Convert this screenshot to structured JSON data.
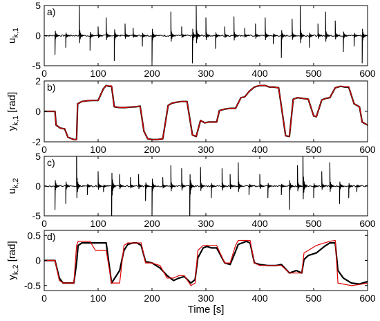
{
  "colors": {
    "black_trace": "#000000",
    "red_trace": "#e00000",
    "axes": "#000000",
    "background": "#ffffff"
  },
  "chart_data": [
    {
      "type": "line",
      "panel_label": "a)",
      "ylabel_main": "u",
      "ylabel_sub": "k,1",
      "ylabel_unit": "",
      "xlim": [
        0,
        600
      ],
      "ylim": [
        -5,
        5
      ],
      "xticks": [
        "0",
        "100",
        "200",
        "300",
        "400",
        "500",
        "600"
      ],
      "yticks": [
        "-5",
        "0",
        "5"
      ],
      "yticks_values": [
        -5,
        0,
        5
      ],
      "steps": [
        {
          "t": 20,
          "v": -3.2
        },
        {
          "t": 40,
          "v": -2.0
        },
        {
          "t": 65,
          "v": 5.0
        },
        {
          "t": 85,
          "v": -2.5
        },
        {
          "t": 100,
          "v": 1.5
        },
        {
          "t": 115,
          "v": 3.0
        },
        {
          "t": 130,
          "v": -4.2
        },
        {
          "t": 150,
          "v": 2.0
        },
        {
          "t": 165,
          "v": 1.3
        },
        {
          "t": 182,
          "v": -1.8
        },
        {
          "t": 200,
          "v": -4.5
        },
        {
          "t": 235,
          "v": 4.0
        },
        {
          "t": 255,
          "v": 1.5
        },
        {
          "t": 275,
          "v": -4.6
        },
        {
          "t": 282,
          "v": 5.0
        },
        {
          "t": 300,
          "v": 3.0
        },
        {
          "t": 318,
          "v": -2.2
        },
        {
          "t": 335,
          "v": 1.5
        },
        {
          "t": 352,
          "v": 3.2
        },
        {
          "t": 372,
          "v": 1.3
        },
        {
          "t": 392,
          "v": 2.0
        },
        {
          "t": 410,
          "v": 3.0
        },
        {
          "t": 425,
          "v": -1.4
        },
        {
          "t": 440,
          "v": -3.7
        },
        {
          "t": 460,
          "v": 2.8
        },
        {
          "t": 475,
          "v": 5.0
        },
        {
          "t": 492,
          "v": -2.0
        },
        {
          "t": 508,
          "v": 2.0
        },
        {
          "t": 522,
          "v": 4.0
        },
        {
          "t": 540,
          "v": 2.5
        },
        {
          "t": 555,
          "v": -2.7
        },
        {
          "t": 575,
          "v": -1.8
        },
        {
          "t": 590,
          "v": -4.6
        }
      ],
      "series": [
        {
          "color": "#000000",
          "values": []
        }
      ]
    },
    {
      "type": "line",
      "panel_label": "b)",
      "ylabel_main": "y",
      "ylabel_sub": "k,1",
      "ylabel_unit": " [rad]",
      "xlim": [
        0,
        600
      ],
      "ylim": [
        -2,
        2
      ],
      "xticks": [
        "0",
        "100",
        "200",
        "300",
        "400",
        "500",
        "600"
      ],
      "yticks": [
        "-2",
        "0",
        "2"
      ],
      "yticks_values": [
        -2,
        0,
        2
      ],
      "x": [
        0,
        20,
        22,
        30,
        38,
        44,
        55,
        60,
        62,
        70,
        80,
        90,
        100,
        110,
        115,
        120,
        125,
        130,
        140,
        150,
        160,
        170,
        178,
        185,
        192,
        200,
        210,
        220,
        230,
        238,
        245,
        255,
        265,
        275,
        282,
        290,
        298,
        305,
        320,
        325,
        335,
        345,
        355,
        365,
        372,
        380,
        390,
        400,
        410,
        418,
        425,
        435,
        448,
        455,
        462,
        470,
        480,
        490,
        500,
        505,
        515,
        522,
        530,
        540,
        550,
        558,
        565,
        575,
        585,
        590,
        600
      ],
      "series": [
        {
          "color": "#000000",
          "values": [
            0,
            0,
            -0.9,
            -1.1,
            -1.15,
            -1.7,
            -1.85,
            -1.85,
            0.5,
            0.65,
            0.7,
            0.72,
            0.72,
            1.5,
            1.7,
            1.65,
            1.65,
            0.3,
            0.25,
            0.25,
            0.28,
            0.3,
            0.35,
            -1.3,
            -1.8,
            -1.85,
            -1.85,
            -1.8,
            0.4,
            0.55,
            0.6,
            0.65,
            0.65,
            -1.55,
            -1.65,
            -0.6,
            -0.75,
            -0.7,
            -0.7,
            0.05,
            0.15,
            0.2,
            0.2,
            0.9,
            0.95,
            1.3,
            1.6,
            1.7,
            1.7,
            1.6,
            1.6,
            1.55,
            -1.6,
            -1.65,
            0.8,
            0.9,
            0.85,
            0.8,
            -0.3,
            -0.35,
            0.75,
            0.85,
            0.9,
            1.55,
            1.65,
            1.6,
            1.6,
            0.5,
            0.3,
            -0.7,
            -0.9
          ]
        },
        {
          "color": "#e00000",
          "values": [
            0,
            0,
            -0.9,
            -1.1,
            -1.15,
            -1.7,
            -1.85,
            -1.85,
            0.5,
            0.65,
            0.7,
            0.72,
            0.72,
            1.5,
            1.7,
            1.68,
            1.68,
            0.3,
            0.25,
            0.25,
            0.28,
            0.3,
            0.35,
            -1.3,
            -1.8,
            -1.85,
            -1.85,
            -1.8,
            0.4,
            0.55,
            0.6,
            0.65,
            0.65,
            -1.55,
            -1.65,
            -0.6,
            -0.75,
            -0.7,
            -0.7,
            0.05,
            0.15,
            0.2,
            0.2,
            0.9,
            0.95,
            1.3,
            1.6,
            1.72,
            1.7,
            1.6,
            1.6,
            1.55,
            -1.6,
            -1.65,
            0.8,
            0.9,
            0.85,
            0.8,
            -0.3,
            -0.35,
            0.75,
            0.85,
            0.9,
            1.55,
            1.65,
            1.62,
            1.62,
            0.5,
            0.3,
            -0.7,
            -0.9
          ]
        }
      ]
    },
    {
      "type": "line",
      "panel_label": "c)",
      "ylabel_main": "u",
      "ylabel_sub": "k,2",
      "ylabel_unit": "",
      "xlim": [
        0,
        600
      ],
      "ylim": [
        -5,
        5
      ],
      "xticks": [
        "0",
        "100",
        "200",
        "300",
        "400",
        "500",
        "600"
      ],
      "yticks": [
        "-5",
        "0",
        "5"
      ],
      "yticks_values": [
        -5,
        0,
        5
      ],
      "steps": [
        {
          "t": 20,
          "v": -4.0
        },
        {
          "t": 40,
          "v": -3.0
        },
        {
          "t": 60,
          "v": 8.0
        },
        {
          "t": 80,
          "v": -1.5
        },
        {
          "t": 100,
          "v": 2.5
        },
        {
          "t": 110,
          "v": -1.0
        },
        {
          "t": 125,
          "v": -9.0
        },
        {
          "t": 140,
          "v": 2.0
        },
        {
          "t": 160,
          "v": 1.5
        },
        {
          "t": 175,
          "v": 2.0
        },
        {
          "t": 188,
          "v": -2.5
        },
        {
          "t": 200,
          "v": -5.0
        },
        {
          "t": 220,
          "v": 1.5
        },
        {
          "t": 235,
          "v": 3.5
        },
        {
          "t": 255,
          "v": 3.0
        },
        {
          "t": 270,
          "v": -8.0
        },
        {
          "t": 290,
          "v": 3.2
        },
        {
          "t": 310,
          "v": -2.0
        },
        {
          "t": 330,
          "v": 3.0
        },
        {
          "t": 345,
          "v": 2.0
        },
        {
          "t": 360,
          "v": 4.0
        },
        {
          "t": 380,
          "v": -1.5
        },
        {
          "t": 400,
          "v": 2.0
        },
        {
          "t": 415,
          "v": -2.0
        },
        {
          "t": 440,
          "v": -1.5
        },
        {
          "t": 455,
          "v": -4.0
        },
        {
          "t": 470,
          "v": 3.5
        },
        {
          "t": 480,
          "v": 9.0
        },
        {
          "t": 500,
          "v": -2.0
        },
        {
          "t": 515,
          "v": 2.5
        },
        {
          "t": 530,
          "v": 4.0
        },
        {
          "t": 548,
          "v": -3.0
        },
        {
          "t": 565,
          "v": -2.0
        },
        {
          "t": 580,
          "v": -1.0
        }
      ],
      "series": [
        {
          "color": "#000000",
          "values": []
        }
      ]
    },
    {
      "type": "line",
      "panel_label": "d)",
      "ylabel_main": "y",
      "ylabel_sub": "k,2",
      "ylabel_unit": " [rad]",
      "xlabel": "Time [s]",
      "xlim": [
        0,
        600
      ],
      "ylim": [
        -0.6,
        0.6
      ],
      "xticks": [
        "0",
        "100",
        "200",
        "300",
        "400",
        "500",
        "600"
      ],
      "yticks": [
        "-0.5",
        "0",
        "0.5"
      ],
      "yticks_values": [
        -0.5,
        0,
        0.5
      ],
      "x": [
        0,
        20,
        28,
        35,
        45,
        55,
        60,
        63,
        70,
        85,
        95,
        105,
        115,
        125,
        128,
        140,
        148,
        155,
        165,
        172,
        180,
        188,
        200,
        215,
        228,
        240,
        250,
        260,
        272,
        280,
        285,
        295,
        302,
        310,
        320,
        335,
        345,
        355,
        360,
        375,
        382,
        390,
        400,
        415,
        430,
        440,
        455,
        468,
        478,
        482,
        490,
        505,
        520,
        530,
        540,
        545,
        555,
        570,
        585,
        600
      ],
      "series": [
        {
          "color": "#000000",
          "values": [
            0,
            0,
            -0.35,
            -0.45,
            -0.45,
            -0.45,
            -0.05,
            0.3,
            0.35,
            0.35,
            0.35,
            0.35,
            0.35,
            -0.45,
            -0.4,
            -0.2,
            0.2,
            0.32,
            0.35,
            0.35,
            0.3,
            -0.02,
            -0.05,
            -0.15,
            -0.3,
            -0.4,
            -0.35,
            -0.32,
            -0.45,
            -0.38,
            0.05,
            0.25,
            0.28,
            0.25,
            0.25,
            -0.05,
            -0.08,
            0.18,
            0.32,
            0.38,
            0.35,
            -0.05,
            -0.08,
            -0.1,
            -0.1,
            -0.08,
            -0.25,
            -0.2,
            -0.25,
            0.02,
            0.1,
            0.15,
            0.28,
            0.35,
            0.35,
            -0.2,
            -0.35,
            -0.45,
            -0.47,
            -0.42
          ]
        },
        {
          "color": "#e00000",
          "values": [
            0,
            0,
            -0.4,
            -0.45,
            -0.45,
            -0.45,
            0.3,
            0.38,
            0.38,
            0.38,
            0.2,
            0.2,
            0.2,
            -0.45,
            -0.45,
            -0.45,
            0.3,
            0.35,
            0.35,
            0.35,
            0.35,
            -0.05,
            -0.05,
            -0.1,
            -0.35,
            -0.35,
            -0.3,
            -0.3,
            -0.5,
            -0.45,
            0.2,
            0.3,
            0.3,
            0.3,
            0.3,
            -0.05,
            -0.05,
            0.3,
            0.4,
            0.4,
            0.4,
            -0.05,
            -0.1,
            -0.1,
            -0.1,
            -0.1,
            -0.25,
            -0.25,
            -0.25,
            0.15,
            0.2,
            0.3,
            0.35,
            0.38,
            0.4,
            -0.45,
            -0.47,
            -0.5,
            -0.48,
            -0.45
          ]
        }
      ]
    }
  ]
}
